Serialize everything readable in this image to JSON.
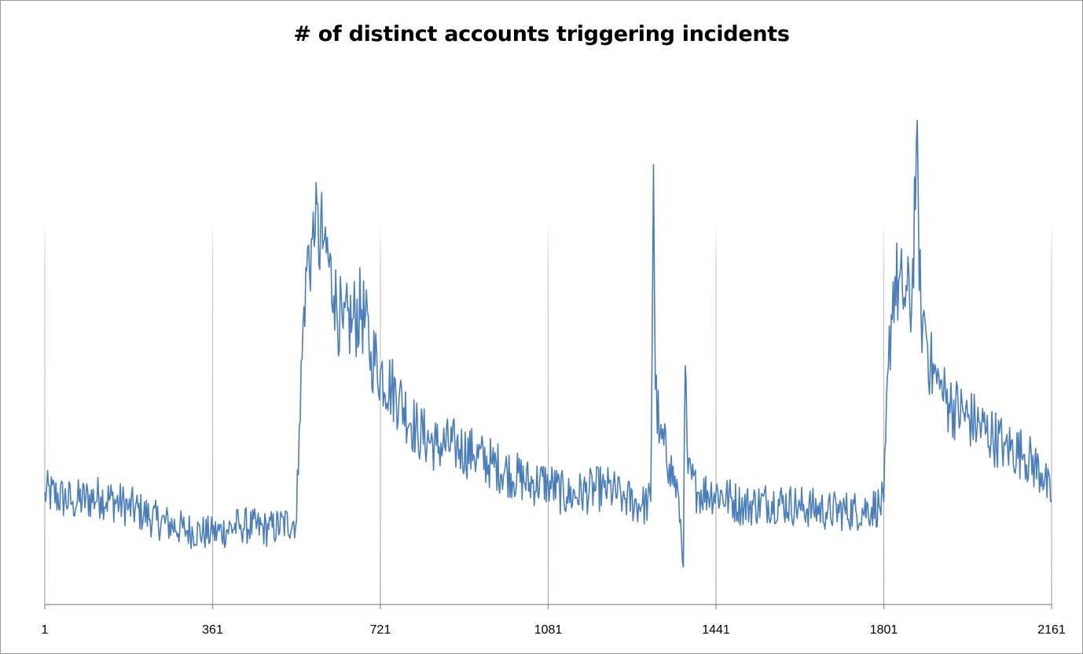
{
  "chart_data": {
    "type": "line",
    "title": "# of distinct accounts triggering incidents",
    "xlabel": "",
    "ylabel": "",
    "x_ticks": [
      "1",
      "361",
      "721",
      "1081",
      "1441",
      "1801",
      "2161"
    ],
    "xlim": [
      1,
      2161
    ],
    "ylim": [
      0,
      100
    ],
    "y_axis_visible": false,
    "grid": "vertical",
    "legend": "none",
    "series_color": "#4A7EBB",
    "x": [
      1,
      61,
      121,
      181,
      241,
      301,
      361,
      421,
      481,
      541,
      547,
      561,
      581,
      601,
      621,
      641,
      661,
      681,
      701,
      721,
      761,
      801,
      841,
      881,
      921,
      961,
      1001,
      1041,
      1081,
      1121,
      1161,
      1201,
      1241,
      1281,
      1301,
      1307,
      1311,
      1321,
      1341,
      1361,
      1371,
      1375,
      1381,
      1401,
      1441,
      1501,
      1561,
      1621,
      1681,
      1741,
      1791,
      1801,
      1811,
      1821,
      1841,
      1861,
      1871,
      1881,
      1891,
      1901,
      1921,
      1941,
      1981,
      2021,
      2061,
      2101,
      2141,
      2161
    ],
    "values": [
      20,
      18,
      19,
      17,
      14,
      12,
      11,
      13,
      12,
      14,
      34,
      68,
      75,
      74,
      62,
      55,
      57,
      59,
      50,
      46,
      40,
      33,
      30,
      30,
      28,
      26,
      24,
      22,
      22,
      19,
      20,
      21,
      19,
      17,
      18,
      90,
      42,
      32,
      26,
      19,
      4,
      47,
      24,
      20,
      20,
      17,
      18,
      17,
      16,
      16,
      17,
      18,
      47,
      65,
      63,
      60,
      95,
      58,
      55,
      47,
      42,
      39,
      36,
      33,
      30,
      28,
      24,
      18
    ]
  }
}
